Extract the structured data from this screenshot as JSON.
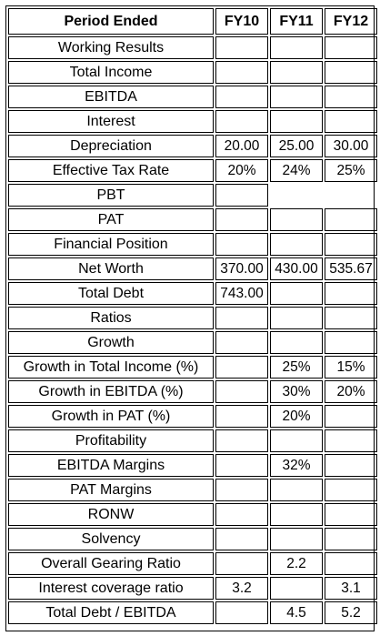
{
  "header": {
    "label": "Period Ended",
    "fy10": "FY10",
    "fy11": "FY11",
    "fy12": "FY12"
  },
  "rows": [
    {
      "label": "Working Results",
      "fy10": "",
      "fy11": "",
      "fy12": ""
    },
    {
      "label": "Total Income",
      "fy10": "",
      "fy11": "",
      "fy12": ""
    },
    {
      "label": "EBITDA",
      "fy10": "",
      "fy11": "",
      "fy12": ""
    },
    {
      "label": "Interest",
      "fy10": "",
      "fy11": "",
      "fy12": ""
    },
    {
      "label": "Depreciation",
      "fy10": "20.00",
      "fy11": "25.00",
      "fy12": "30.00"
    },
    {
      "label": "Effective Tax Rate",
      "fy10": "20%",
      "fy11": "24%",
      "fy12": "25%"
    },
    {
      "label": "PBT",
      "fy10": "",
      "fy11": "",
      "fy12": ""
    },
    {
      "label": "PAT",
      "fy10": "",
      "fy11": "",
      "fy12": ""
    },
    {
      "label": "Financial Position",
      "fy10": "",
      "fy11": "",
      "fy12": ""
    },
    {
      "label": "Net Worth",
      "fy10": "370.00",
      "fy11": "430.00",
      "fy12": "535.67"
    },
    {
      "label": "Total Debt",
      "fy10": "743.00",
      "fy11": "",
      "fy12": ""
    },
    {
      "label": "Ratios",
      "fy10": "",
      "fy11": "",
      "fy12": ""
    },
    {
      "label": "Growth",
      "fy10": "",
      "fy11": "",
      "fy12": ""
    },
    {
      "label": "Growth in Total Income (%)",
      "fy10": "",
      "fy11": "25%",
      "fy12": "15%"
    },
    {
      "label": "Growth in EBITDA (%)",
      "fy10": "",
      "fy11": "30%",
      "fy12": "20%"
    },
    {
      "label": "Growth in PAT (%)",
      "fy10": "",
      "fy11": "20%",
      "fy12": ""
    },
    {
      "label": "Profitability",
      "fy10": "",
      "fy11": "",
      "fy12": ""
    },
    {
      "label": "EBITDA Margins",
      "fy10": "",
      "fy11": "32%",
      "fy12": ""
    },
    {
      "label": "PAT Margins",
      "fy10": "",
      "fy11": "",
      "fy12": ""
    },
    {
      "label": "RONW",
      "fy10": "",
      "fy11": "",
      "fy12": ""
    },
    {
      "label": "Solvency",
      "fy10": "",
      "fy11": "",
      "fy12": ""
    },
    {
      "label": "Overall Gearing Ratio",
      "fy10": "",
      "fy11": "2.2",
      "fy12": ""
    },
    {
      "label": "Interest coverage ratio",
      "fy10": "3.2",
      "fy11": "",
      "fy12": "3.1"
    },
    {
      "label": "Total Debt / EBITDA",
      "fy10": "",
      "fy11": "4.5",
      "fy12": "5.2"
    }
  ]
}
